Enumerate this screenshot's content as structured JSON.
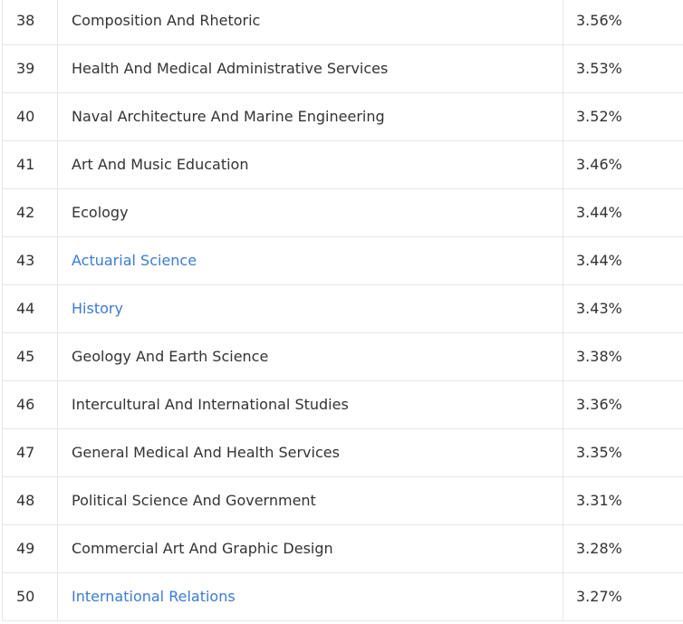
{
  "colors": {
    "text": "#333333",
    "link": "#3b7bd4",
    "border": "#e6e6e6"
  },
  "rows": [
    {
      "rank": "38",
      "major": "Composition And Rhetoric",
      "pct": "3.56%",
      "link": false
    },
    {
      "rank": "39",
      "major": "Health And Medical Administrative Services",
      "pct": "3.53%",
      "link": false
    },
    {
      "rank": "40",
      "major": "Naval Architecture And Marine Engineering",
      "pct": "3.52%",
      "link": false
    },
    {
      "rank": "41",
      "major": "Art And Music Education",
      "pct": "3.46%",
      "link": false
    },
    {
      "rank": "42",
      "major": "Ecology",
      "pct": "3.44%",
      "link": false
    },
    {
      "rank": "43",
      "major": "Actuarial Science",
      "pct": "3.44%",
      "link": true
    },
    {
      "rank": "44",
      "major": "History",
      "pct": "3.43%",
      "link": true
    },
    {
      "rank": "45",
      "major": "Geology And Earth Science",
      "pct": "3.38%",
      "link": false
    },
    {
      "rank": "46",
      "major": "Intercultural And International Studies",
      "pct": "3.36%",
      "link": false
    },
    {
      "rank": "47",
      "major": "General Medical And Health Services",
      "pct": "3.35%",
      "link": false
    },
    {
      "rank": "48",
      "major": "Political Science And Government",
      "pct": "3.31%",
      "link": false
    },
    {
      "rank": "49",
      "major": "Commercial Art And Graphic Design",
      "pct": "3.28%",
      "link": false
    },
    {
      "rank": "50",
      "major": "International Relations",
      "pct": "3.27%",
      "link": true
    }
  ]
}
